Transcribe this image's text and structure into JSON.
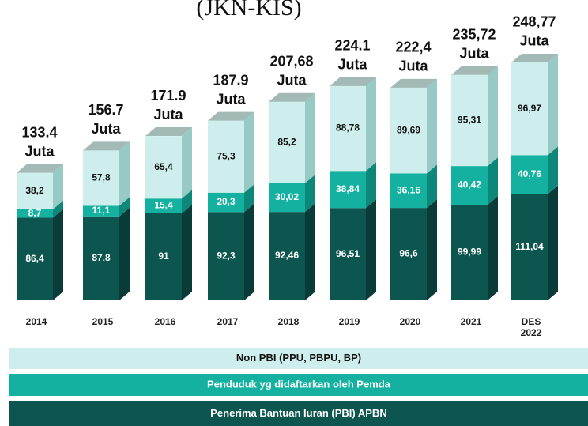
{
  "chart_data": {
    "type": "bar3d_stacked",
    "title": "(JKN-KIS)",
    "categories": [
      "2014",
      "2015",
      "2016",
      "2017",
      "2018",
      "2019",
      "2020",
      "2021",
      "DES 2022"
    ],
    "series": [
      {
        "name": "Penerima Bantuan Iuran (PBI) APBN",
        "color": "#0d5650",
        "values": [
          86.4,
          87.8,
          91,
          92.3,
          92.46,
          96.51,
          96.6,
          99.99,
          111.04
        ],
        "value_labels": [
          "86,4",
          "87,8",
          "91",
          "92,3",
          "92,46",
          "96,51",
          "96,6",
          "99,99",
          "111,04"
        ]
      },
      {
        "name": "Penduduk yg didaftarkan oleh Pemda",
        "color": "#14b1a0",
        "values": [
          8.7,
          11.1,
          15.4,
          20.3,
          30.02,
          38.84,
          36.16,
          40.42,
          40.76
        ],
        "value_labels": [
          "8,7",
          "11,1",
          "15,4",
          "20,3",
          "30,02",
          "38,84",
          "36,16",
          "40,42",
          "40,76"
        ]
      },
      {
        "name": "Non PBI (PPU, PBPU, BP)",
        "color": "#cdeeec",
        "values": [
          38.2,
          57.8,
          65.4,
          75.3,
          85.2,
          88.78,
          89.69,
          95.31,
          96.97
        ],
        "value_labels": [
          "38,2",
          "57,8",
          "65,4",
          "75,3",
          "85,2",
          "88,78",
          "89,69",
          "95,31",
          "96,97"
        ]
      }
    ],
    "totals": [
      133.4,
      156.7,
      171.9,
      187.9,
      207.68,
      224.1,
      222.4,
      235.72,
      248.77
    ],
    "total_labels": [
      "133.4",
      "156.7",
      "171.9",
      "187.9",
      "207,68",
      "224.1",
      "222,4",
      "235,72",
      "248,77"
    ],
    "total_unit": "Juta"
  }
}
